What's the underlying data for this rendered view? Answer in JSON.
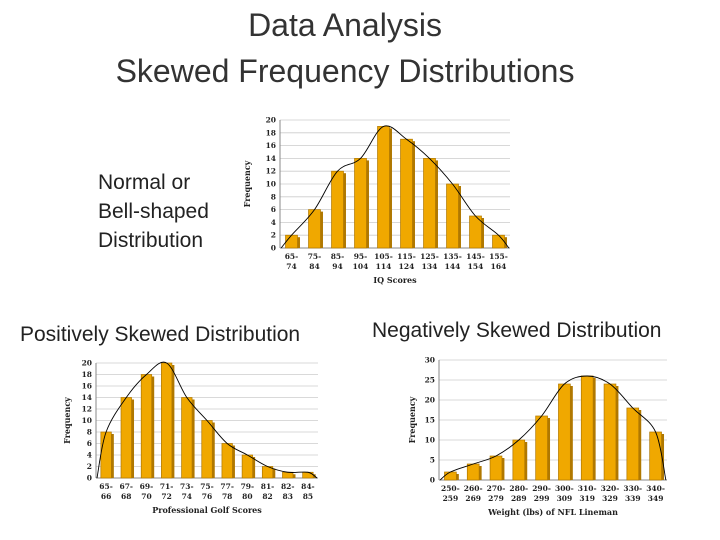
{
  "title_line1": "Data Analysis",
  "title_line2": "Skewed Frequency Distributions",
  "labels": {
    "normal": [
      "Normal or",
      "Bell-shaped",
      "Distribution"
    ],
    "positive": "Positively Skewed Distribution",
    "negative": "Negatively Skewed Distribution"
  },
  "colors": {
    "bar": "#f0a800",
    "bar_dark": "#b07800",
    "grid": "#cccccc",
    "curve": "#000000"
  },
  "chart_data": [
    {
      "id": "normal",
      "type": "bar",
      "xlabel": "IQ Scores",
      "ylabel": "Frequency",
      "ylim": [
        0,
        20
      ],
      "ytick_step": 2,
      "categories": [
        [
          "65-",
          "74"
        ],
        [
          "75-",
          "84"
        ],
        [
          "85-",
          "94"
        ],
        [
          "95-",
          "104"
        ],
        [
          "105-",
          "114"
        ],
        [
          "115-",
          "124"
        ],
        [
          "125-",
          "134"
        ],
        [
          "135-",
          "144"
        ],
        [
          "145-",
          "154"
        ],
        [
          "155-",
          "164"
        ]
      ],
      "values": [
        2,
        6,
        12,
        14,
        19,
        17,
        14,
        10,
        5,
        2
      ],
      "grid": true,
      "curve": true
    },
    {
      "id": "positive",
      "type": "bar",
      "xlabel": "Professional Golf Scores",
      "ylabel": "Frequency",
      "ylim": [
        0,
        20
      ],
      "ytick_step": 2,
      "categories": [
        [
          "65-",
          "66"
        ],
        [
          "67-",
          "68"
        ],
        [
          "69-",
          "70"
        ],
        [
          "71-",
          "72"
        ],
        [
          "73-",
          "74"
        ],
        [
          "75-",
          "76"
        ],
        [
          "77-",
          "78"
        ],
        [
          "79-",
          "80"
        ],
        [
          "81-",
          "82"
        ],
        [
          "82-",
          "83"
        ],
        [
          "84-",
          "85"
        ]
      ],
      "values": [
        8,
        14,
        18,
        20,
        14,
        10,
        6,
        4,
        2,
        1,
        1
      ],
      "grid": true,
      "curve": true
    },
    {
      "id": "negative",
      "type": "bar",
      "xlabel": "Weight (lbs) of NFL Lineman",
      "ylabel": "Frequency",
      "ylim": [
        0,
        30
      ],
      "ytick_step": 5,
      "categories": [
        [
          "250-",
          "259"
        ],
        [
          "260-",
          "269"
        ],
        [
          "270-",
          "279"
        ],
        [
          "280-",
          "289"
        ],
        [
          "290-",
          "299"
        ],
        [
          "300-",
          "309"
        ],
        [
          "310-",
          "319"
        ],
        [
          "320-",
          "329"
        ],
        [
          "330-",
          "339"
        ],
        [
          "340-",
          "349"
        ]
      ],
      "values": [
        2,
        4,
        6,
        10,
        16,
        24,
        26,
        24,
        18,
        12
      ],
      "grid": true,
      "curve": true
    }
  ]
}
